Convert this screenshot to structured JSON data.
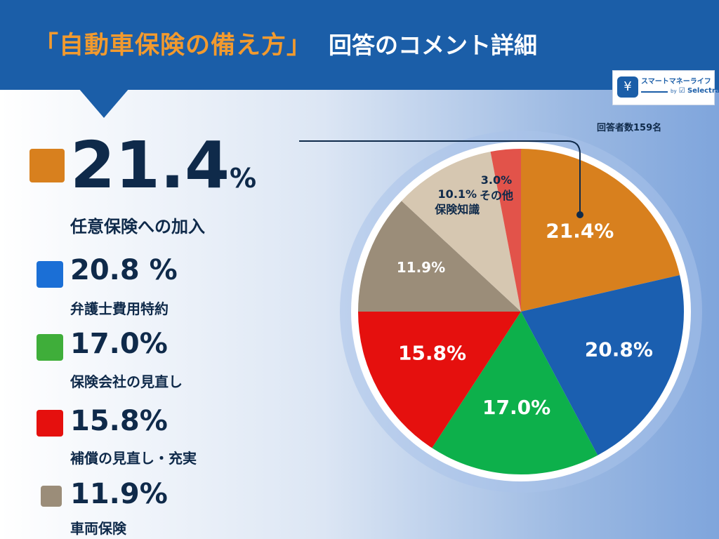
{
  "header": {
    "title_accent": "「自動車保険の備え方」",
    "title_main": "回答のコメント詳細"
  },
  "logo": {
    "name": "スマートマネーライフ",
    "by": "by",
    "brand": "Selectra"
  },
  "respondents_label": "回答者数159名",
  "legend": [
    {
      "value": "21.4",
      "unit": "%",
      "label": "任意保険への加入"
    },
    {
      "value": "20.8 %",
      "label": "弁護士費用特約"
    },
    {
      "value": "17.0%",
      "label": "保険会社の見直し"
    },
    {
      "value": "15.8%",
      "label": "補償の見直し・充実"
    },
    {
      "value": "11.9%",
      "label": "車両保険"
    }
  ],
  "colors": {
    "orange": "#d8801e",
    "blue": "#1b5fb0",
    "green": "#0db04b",
    "red": "#e5100e",
    "taupe": "#9b8d79",
    "beige": "#d6c7b1",
    "coral": "#e2534a",
    "header": "#1b5ea8"
  },
  "chart_data": {
    "type": "pie",
    "title": "回答のコメント詳細",
    "total_respondents": 159,
    "slices": [
      {
        "name": "任意保険への加入",
        "value": 21.4,
        "label": "21.4%",
        "color": "#d8801e"
      },
      {
        "name": "弁護士費用特約",
        "value": 20.8,
        "label": "20.8%",
        "color": "#1b5fb0"
      },
      {
        "name": "保険会社の見直し",
        "value": 17.0,
        "label": "17.0%",
        "color": "#0db04b"
      },
      {
        "name": "補償の見直し・充実",
        "value": 15.8,
        "label": "15.8%",
        "color": "#e5100e"
      },
      {
        "name": "車両保険",
        "value": 11.9,
        "label": "11.9%",
        "color": "#9b8d79"
      },
      {
        "name": "保険知識",
        "value": 10.1,
        "label": "10.1%",
        "color": "#d6c7b1"
      },
      {
        "name": "その他",
        "value": 3.0,
        "label": "3.0%",
        "color": "#e2534a"
      }
    ]
  }
}
